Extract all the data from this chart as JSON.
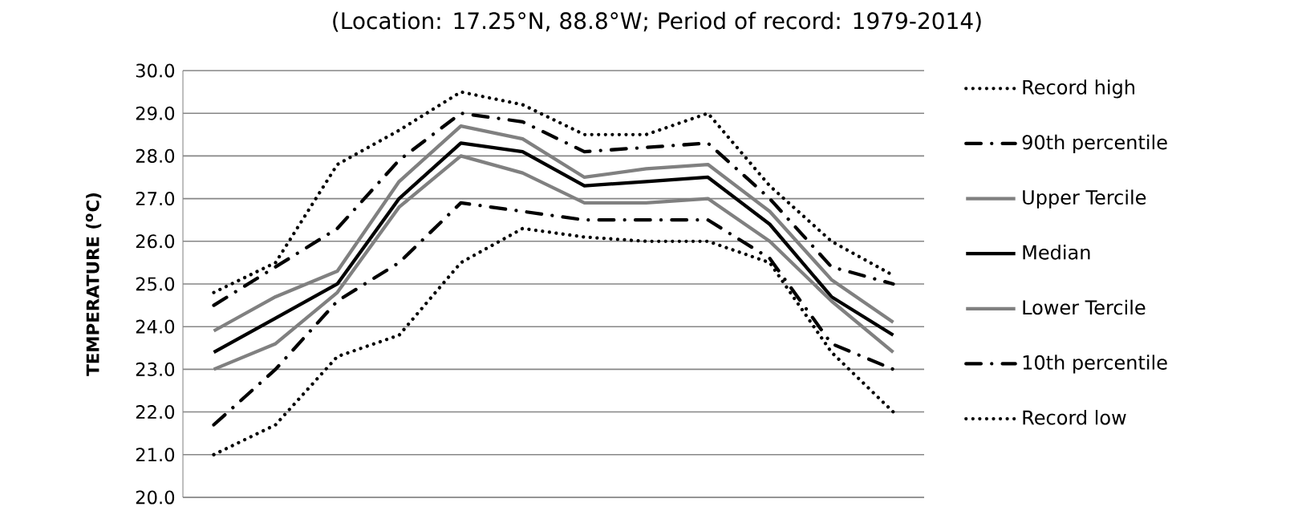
{
  "chart_data": {
    "type": "line",
    "title": "(Location: 17.25°N, 88.8°W; Period of record: 1979-2014)",
    "ylabel": "TEMPERATURE ($^{o}$C)",
    "categories": [
      null,
      null,
      null,
      null,
      null,
      null,
      null,
      null,
      null,
      null,
      null,
      null
    ],
    "ylim": [
      20,
      30
    ],
    "yticks": [
      {
        "value": 20,
        "label": "20.0"
      },
      {
        "value": 21,
        "label": "21.0"
      },
      {
        "value": 22,
        "label": "22.0"
      },
      {
        "value": 23,
        "label": "23.0"
      },
      {
        "value": 24,
        "label": "24.0"
      },
      {
        "value": 25,
        "label": "25.0"
      },
      {
        "value": 26,
        "label": "26.0"
      },
      {
        "value": 27,
        "label": "27.0"
      },
      {
        "value": 28,
        "label": "28.0"
      },
      {
        "value": 29,
        "label": "29.0"
      },
      {
        "value": 30,
        "label": "30.0"
      }
    ],
    "grid": "y",
    "legend": "right",
    "tick_labels": "y",
    "marker": "none",
    "series": [
      {
        "name": "Record high",
        "color": "#000000",
        "line_style": "dotted",
        "values": [
          24.8,
          25.5,
          27.8,
          28.6,
          29.5,
          29.2,
          28.5,
          28.5,
          29.0,
          27.3,
          26.0,
          25.2
        ]
      },
      {
        "name": "90th percentile",
        "color": "#000000",
        "line_style": "dashdot",
        "values": [
          24.5,
          25.4,
          26.3,
          27.9,
          29.0,
          28.8,
          28.1,
          28.2,
          28.3,
          27.0,
          25.4,
          25.0
        ]
      },
      {
        "name": "Upper Tercile",
        "color": "#808080",
        "line_style": "solid",
        "values": [
          23.9,
          24.7,
          25.3,
          27.4,
          28.7,
          28.4,
          27.5,
          27.7,
          27.8,
          26.7,
          25.1,
          24.1
        ]
      },
      {
        "name": "Median",
        "color": "#000000",
        "line_style": "solid",
        "values": [
          23.4,
          24.2,
          25.0,
          27.0,
          28.3,
          28.1,
          27.3,
          27.4,
          27.5,
          26.4,
          24.7,
          23.8
        ]
      },
      {
        "name": "Lower Tercile",
        "color": "#808080",
        "line_style": "solid",
        "values": [
          23.0,
          23.6,
          24.8,
          26.8,
          28.0,
          27.6,
          26.9,
          26.9,
          27.0,
          26.0,
          24.6,
          23.4
        ]
      },
      {
        "name": "10th percentile",
        "color": "#000000",
        "line_style": "dashdot",
        "values": [
          21.7,
          23.0,
          24.6,
          25.5,
          26.9,
          26.7,
          26.5,
          26.5,
          26.5,
          25.6,
          23.6,
          23.0
        ]
      },
      {
        "name": "Record low",
        "color": "#000000",
        "line_style": "dotted",
        "values": [
          21.0,
          21.7,
          23.3,
          23.8,
          25.5,
          26.3,
          26.1,
          26.0,
          26.0,
          25.5,
          23.4,
          22.0
        ]
      }
    ]
  }
}
